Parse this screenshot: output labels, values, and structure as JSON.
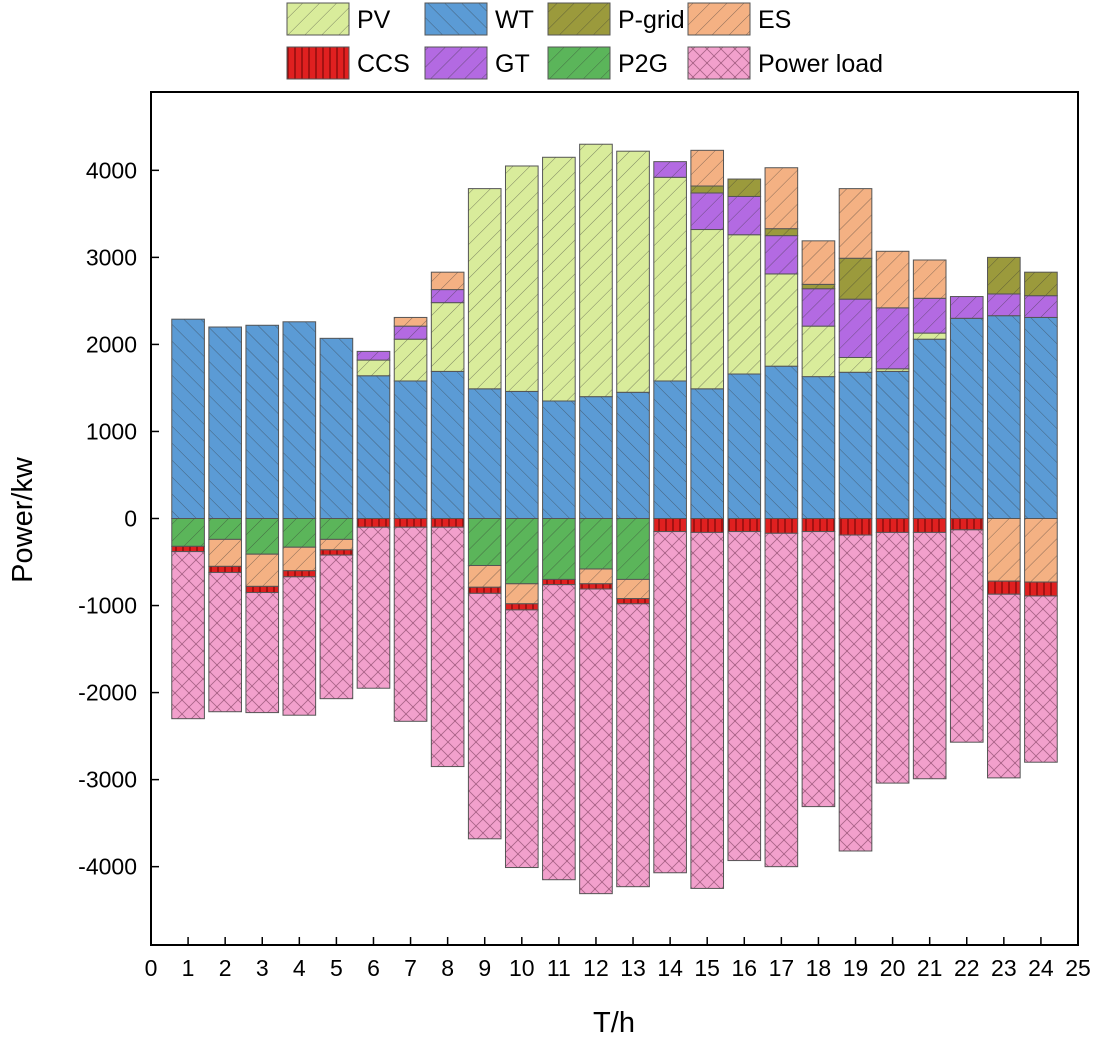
{
  "chart_data": {
    "type": "bar",
    "subtype": "stacked",
    "title": "",
    "xlabel": "T/h",
    "ylabel": "Power/kw",
    "xlim": [
      0,
      25
    ],
    "ylim": [
      -4900,
      4900
    ],
    "xticks": [
      0,
      1,
      2,
      3,
      4,
      5,
      6,
      7,
      8,
      9,
      10,
      11,
      12,
      13,
      14,
      15,
      16,
      17,
      18,
      19,
      20,
      21,
      22,
      23,
      24,
      25
    ],
    "xtick_labels": [
      "0",
      "1",
      "2",
      "3",
      "4",
      "5",
      "6",
      "7",
      "8",
      "9",
      "10",
      "11",
      "12",
      "13",
      "14",
      "15",
      "16",
      "17",
      "18",
      "19",
      "20",
      "21",
      "22",
      "23",
      "24",
      "25"
    ],
    "yticks": [
      -4000,
      -3000,
      -2000,
      -1000,
      0,
      1000,
      2000,
      3000,
      4000
    ],
    "ytick_labels": [
      "-4000",
      "-3000",
      "-2000",
      "-1000",
      "0",
      "1000",
      "2000",
      "3000",
      "4000"
    ],
    "categories": [
      1,
      2,
      3,
      4,
      5,
      6,
      7,
      8,
      9,
      10,
      11,
      12,
      13,
      14,
      15,
      16,
      17,
      18,
      19,
      20,
      21,
      22,
      23,
      24
    ],
    "legend_position": "top",
    "legend": [
      "PV",
      "WT",
      "P-grid",
      "ES",
      "CCS",
      "GT",
      "P2G",
      "Power load"
    ],
    "series": [
      {
        "name": "WT",
        "key": "WT",
        "color": "#5b9bd5",
        "side": "supply",
        "values": [
          2290,
          2200,
          2220,
          2260,
          2070,
          1640,
          1580,
          1690,
          1490,
          1460,
          1350,
          1400,
          1450,
          1580,
          1490,
          1660,
          1750,
          1630,
          1680,
          1690,
          2060,
          2300,
          2330,
          2310
        ]
      },
      {
        "name": "PV",
        "key": "PV",
        "color": "#d9ec9b",
        "side": "supply",
        "values": [
          0,
          0,
          0,
          0,
          0,
          180,
          480,
          790,
          2300,
          2590,
          2800,
          2900,
          2770,
          2340,
          1830,
          1600,
          1060,
          580,
          170,
          30,
          70,
          0,
          0,
          0
        ]
      },
      {
        "name": "GT",
        "key": "GT",
        "color": "#b36ae2",
        "side": "supply",
        "values": [
          0,
          0,
          0,
          0,
          0,
          100,
          150,
          150,
          0,
          0,
          0,
          0,
          0,
          180,
          420,
          440,
          440,
          430,
          670,
          700,
          400,
          250,
          250,
          250
        ]
      },
      {
        "name": "P-grid",
        "key": "P-grid",
        "color": "#9b9a3c",
        "side": "supply",
        "values": [
          0,
          0,
          0,
          0,
          0,
          0,
          0,
          0,
          0,
          0,
          0,
          0,
          0,
          0,
          80,
          200,
          80,
          50,
          470,
          0,
          0,
          0,
          420,
          270
        ]
      },
      {
        "name": "ES",
        "key": "ES",
        "color": "#f4b183",
        "side": "supply",
        "values": [
          0,
          0,
          0,
          0,
          0,
          0,
          100,
          200,
          0,
          0,
          0,
          0,
          0,
          0,
          410,
          0,
          700,
          500,
          800,
          650,
          440,
          0,
          0,
          0
        ]
      },
      {
        "name": "P2G",
        "key": "P2G",
        "color": "#5bb55a",
        "side": "demand",
        "values": [
          320,
          240,
          410,
          330,
          240,
          0,
          0,
          0,
          540,
          750,
          700,
          580,
          700,
          0,
          0,
          0,
          0,
          0,
          0,
          0,
          0,
          0,
          0,
          0
        ]
      },
      {
        "name": "ES (charge)",
        "key": "ES",
        "color": "#f4b183",
        "side": "demand",
        "values": [
          0,
          310,
          370,
          270,
          120,
          0,
          0,
          0,
          250,
          230,
          0,
          170,
          220,
          0,
          0,
          0,
          0,
          0,
          0,
          0,
          0,
          0,
          720,
          730
        ]
      },
      {
        "name": "CCS",
        "key": "CCS",
        "color": "#e02020",
        "side": "demand",
        "values": [
          60,
          70,
          70,
          70,
          60,
          100,
          100,
          100,
          70,
          70,
          60,
          60,
          60,
          150,
          160,
          150,
          170,
          150,
          190,
          160,
          160,
          130,
          150,
          160
        ]
      },
      {
        "name": "Power load",
        "key": "Power load",
        "color": "#f2a0cc",
        "side": "demand",
        "values": [
          1920,
          1600,
          1380,
          1590,
          1650,
          1850,
          2230,
          2750,
          2820,
          2960,
          3390,
          3500,
          3250,
          3920,
          4090,
          3780,
          3830,
          3160,
          3630,
          2880,
          2830,
          2440,
          2110,
          1910
        ]
      }
    ]
  },
  "legend_items": [
    {
      "label": "PV",
      "key": "PV"
    },
    {
      "label": "WT",
      "key": "WT"
    },
    {
      "label": "P-grid",
      "key": "P-grid"
    },
    {
      "label": "ES",
      "key": "ES"
    },
    {
      "label": "CCS",
      "key": "CCS"
    },
    {
      "label": "GT",
      "key": "GT"
    },
    {
      "label": "P2G",
      "key": "P2G"
    },
    {
      "label": "Power load",
      "key": "Power load"
    }
  ]
}
